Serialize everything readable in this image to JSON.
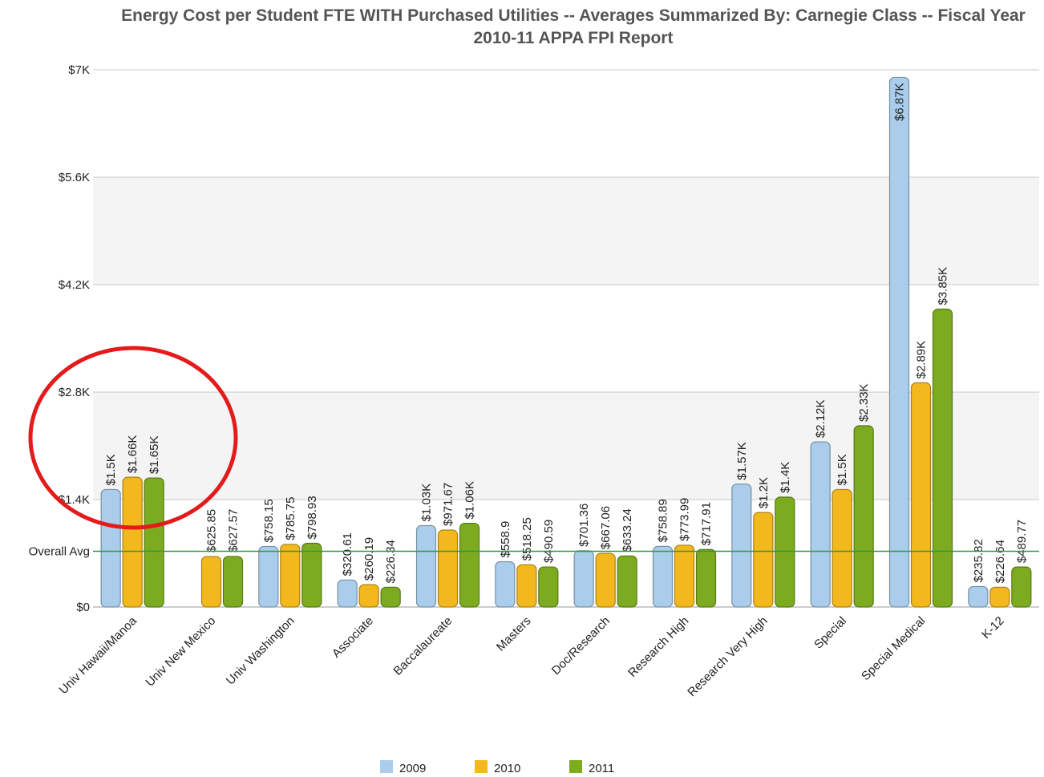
{
  "chart_data": {
    "type": "bar",
    "title": "Energy Cost per Student FTE WITH Purchased Utilities -- Averages Summarized By: Carnegie Class -- Fiscal Year 2010-11 APPA FPI Report",
    "categories": [
      "Univ Hawaii/Manoa",
      "Univ New Mexico",
      "Univ Washington",
      "Associate",
      "Baccalaureate",
      "Masters",
      "Doc/Research",
      "Research High",
      "Research Very High",
      "Special",
      "Special Medical",
      "K-12"
    ],
    "series": [
      {
        "name": "2009",
        "color": "#a9cdea",
        "values": [
          1500,
          null,
          758.15,
          320.61,
          1030,
          558.9,
          701.36,
          758.89,
          1570,
          2120,
          6870,
          235.82
        ],
        "value_labels": [
          "$1.5K",
          null,
          "$758.15",
          "$320.61",
          "$1.03K",
          "$558.9",
          "$701.36",
          "$758.89",
          "$1.57K",
          "$2.12K",
          "$6.87K",
          "$235.82"
        ]
      },
      {
        "name": "2010",
        "color": "#f3b81d",
        "values": [
          1660,
          625.85,
          785.75,
          260.19,
          971.67,
          518.25,
          667.06,
          773.99,
          1200,
          1500,
          2890,
          226.64
        ],
        "value_labels": [
          "$1.66K",
          "$625.85",
          "$785.75",
          "$260.19",
          "$971.67",
          "$518.25",
          "$667.06",
          "$773.99",
          "$1.2K",
          "$1.5K",
          "$2.89K",
          "$226.64"
        ]
      },
      {
        "name": "2011",
        "color": "#7dab1f",
        "values": [
          1650,
          627.57,
          798.93,
          226.34,
          1060,
          490.59,
          633.24,
          717.91,
          1400,
          2330,
          3850,
          489.77
        ],
        "value_labels": [
          "$1.65K",
          "$627.57",
          "$798.93",
          "$226.34",
          "$1.06K",
          "$490.59",
          "$633.24",
          "$717.91",
          "$1.4K",
          "$2.33K",
          "$3.85K",
          "$489.77"
        ]
      }
    ],
    "ylim": [
      0,
      7000
    ],
    "yticks": [
      {
        "value": 0,
        "label": "$0"
      },
      {
        "value": 1400,
        "label": "$1.4K"
      },
      {
        "value": 2800,
        "label": "$2.8K"
      },
      {
        "value": 4200,
        "label": "$4.2K"
      },
      {
        "value": 5600,
        "label": "$5.6K"
      },
      {
        "value": 7000,
        "label": "$7K"
      }
    ],
    "grid": true,
    "reference_line": {
      "label": "Overall Avg",
      "value": 726,
      "color": "#2e9a3e"
    },
    "legend": "bottom"
  }
}
